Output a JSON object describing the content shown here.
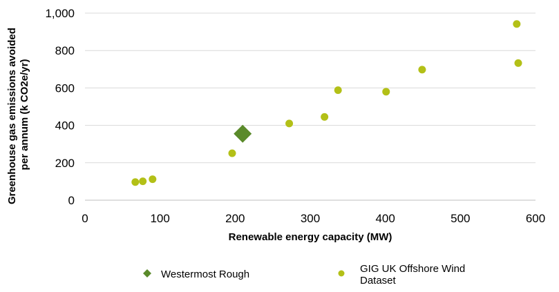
{
  "chart_data": {
    "type": "scatter",
    "xlabel": "Renewable energy capacity (MW)",
    "ylabel_lines": [
      "Greenhouse gas emissions  avoided",
      "per annum (k CO2e/yr)"
    ],
    "xlim": [
      0,
      600
    ],
    "ylim": [
      0,
      1000
    ],
    "xticks": [
      0,
      100,
      200,
      300,
      400,
      500,
      600
    ],
    "yticks": [
      0,
      200,
      400,
      600,
      800,
      1000
    ],
    "xtick_labels": [
      "0",
      "100",
      "200",
      "300",
      "400",
      "500",
      "600"
    ],
    "ytick_labels": [
      "0",
      "200",
      "400",
      "600",
      "800",
      "1,000"
    ],
    "grid": "horizontal",
    "legend_position": "bottom",
    "series": [
      {
        "name": "Westermost Rough",
        "marker": "diamond",
        "color": "#5a8a2a",
        "points": [
          {
            "x": 210,
            "y": 355
          }
        ]
      },
      {
        "name": "GIG UK Offshore Wind Dataset",
        "legend_lines": [
          "GIG UK Offshore Wind",
          "Dataset"
        ],
        "marker": "circle",
        "color": "#b3c017",
        "points": [
          {
            "x": 67,
            "y": 97
          },
          {
            "x": 77,
            "y": 101
          },
          {
            "x": 90,
            "y": 112
          },
          {
            "x": 196,
            "y": 251
          },
          {
            "x": 272,
            "y": 410
          },
          {
            "x": 319,
            "y": 445
          },
          {
            "x": 337,
            "y": 588
          },
          {
            "x": 401,
            "y": 580
          },
          {
            "x": 449,
            "y": 698
          },
          {
            "x": 575,
            "y": 942
          },
          {
            "x": 577,
            "y": 733
          }
        ]
      }
    ]
  }
}
